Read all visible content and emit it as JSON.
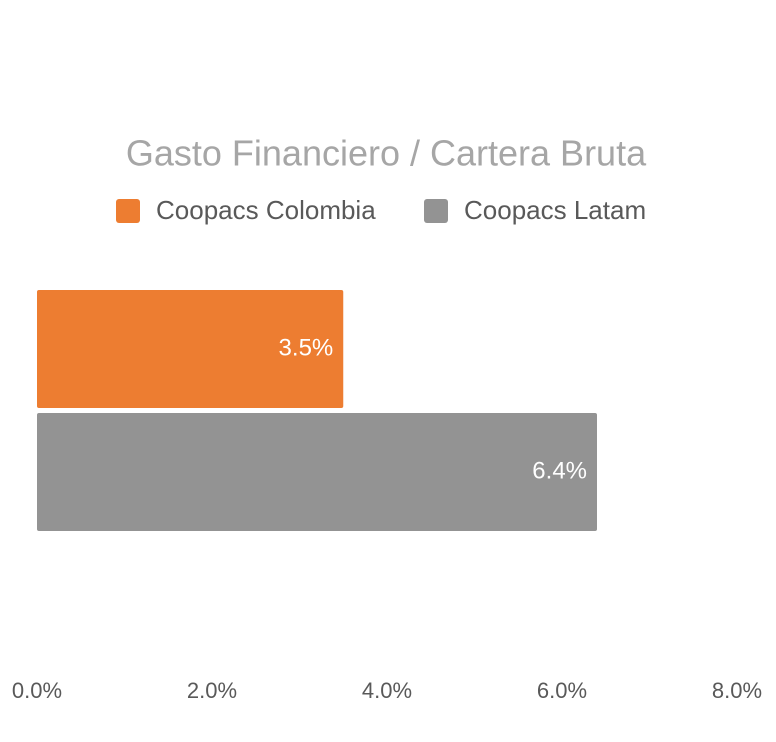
{
  "chart_data": {
    "type": "bar",
    "orientation": "horizontal",
    "title": "Gasto Financiero / Cartera Bruta",
    "categories": [
      null
    ],
    "series": [
      {
        "name": "Coopacs Colombia",
        "color": "#ed7d31",
        "values": [
          3.5
        ],
        "value_labels": [
          "3.5%"
        ]
      },
      {
        "name": "Coopacs Latam",
        "color": "#939393",
        "values": [
          6.4
        ],
        "value_labels": [
          "6.4%"
        ]
      }
    ],
    "xlim": [
      0,
      8
    ],
    "xticks": [
      {
        "value": 0,
        "label": "0.0%"
      },
      {
        "value": 2,
        "label": "2.0%"
      },
      {
        "value": 4,
        "label": "4.0%"
      },
      {
        "value": 6,
        "label": "6.0%"
      },
      {
        "value": 8,
        "label": "8.0%"
      }
    ],
    "grid": false,
    "legend": "top"
  }
}
